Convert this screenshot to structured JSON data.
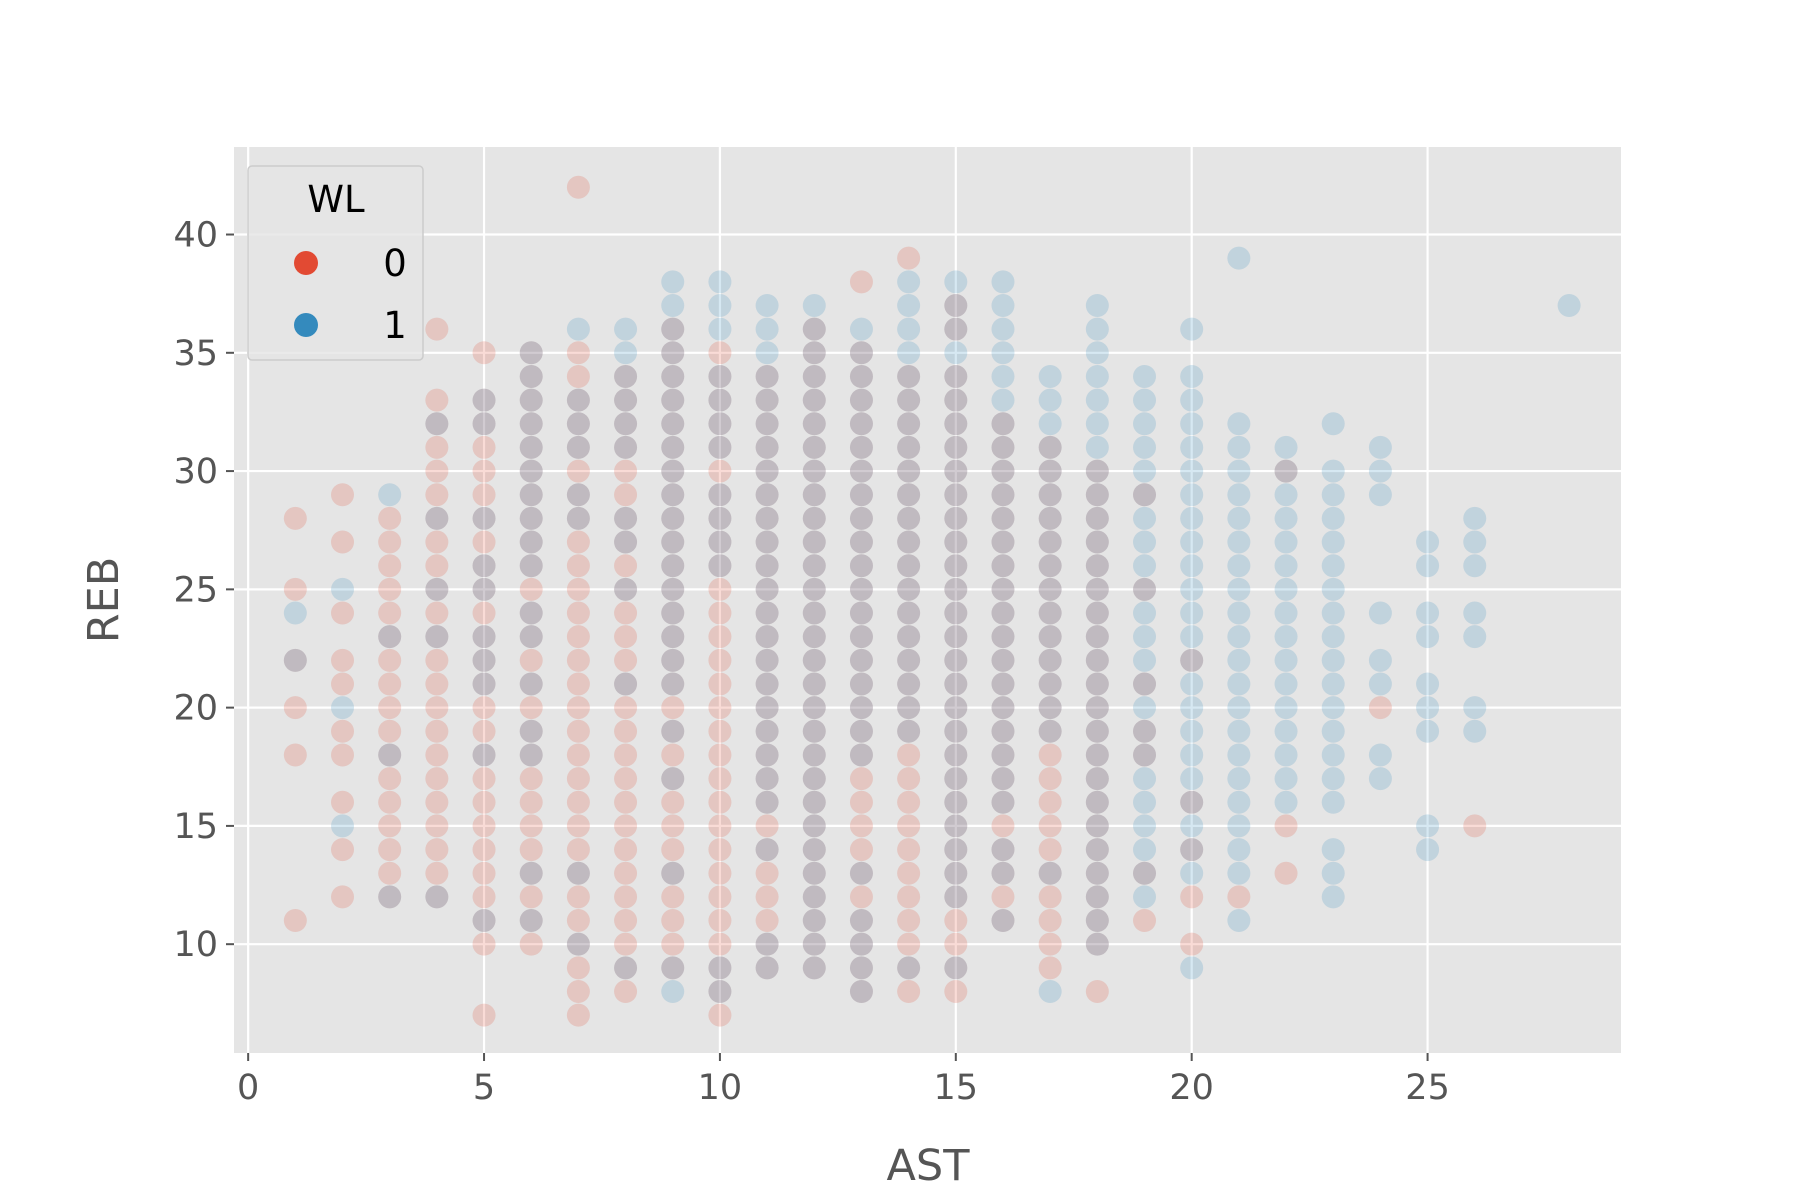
{
  "chart_data": {
    "type": "scatter",
    "title": "",
    "xlabel": "AST",
    "ylabel": "REB",
    "xlim": [
      -0.3,
      29.1
    ],
    "ylim": [
      5.4,
      43.7
    ],
    "xticks": [
      "0",
      "5",
      "10",
      "15",
      "20",
      "25"
    ],
    "yticks": [
      "10",
      "15",
      "20",
      "25",
      "30",
      "35",
      "40"
    ],
    "grid": true,
    "style": "ggplot",
    "legend": {
      "title": "WL",
      "placement": "top-left",
      "entries": [
        {
          "label": "0",
          "color": "#E24A33"
        },
        {
          "label": "1",
          "color": "#348ABD"
        }
      ]
    },
    "point_alpha": 0.2,
    "series": [
      {
        "name": "0",
        "color": "#E24A33",
        "columns": [
          {
            "x": 1,
            "ymin": 11,
            "ymax": 28,
            "extra": [],
            "skip": [
              12,
              13,
              14,
              15,
              16,
              17,
              19,
              21,
              23,
              24,
              26,
              27
            ]
          },
          {
            "x": 2,
            "ymin": 12,
            "ymax": 29,
            "extra": [],
            "skip": [
              13,
              15,
              17,
              20,
              23,
              25,
              26,
              28
            ]
          },
          {
            "x": 3,
            "ymin": 12,
            "ymax": 28,
            "extra": [],
            "skip": []
          },
          {
            "x": 4,
            "ymin": 12,
            "ymax": 33,
            "extra": [
              36
            ],
            "skip": []
          },
          {
            "x": 5,
            "ymin": 10,
            "ymax": 33,
            "extra": [
              7,
              35
            ],
            "skip": []
          },
          {
            "x": 6,
            "ymin": 10,
            "ymax": 35,
            "extra": [],
            "skip": []
          },
          {
            "x": 7,
            "ymin": 8,
            "ymax": 35,
            "extra": [
              7,
              42
            ],
            "skip": []
          },
          {
            "x": 8,
            "ymin": 8,
            "ymax": 34,
            "extra": [],
            "skip": []
          },
          {
            "x": 9,
            "ymin": 9,
            "ymax": 36,
            "extra": [],
            "skip": []
          },
          {
            "x": 10,
            "ymin": 7,
            "ymax": 35,
            "extra": [],
            "skip": []
          },
          {
            "x": 11,
            "ymin": 9,
            "ymax": 34,
            "extra": [],
            "skip": []
          },
          {
            "x": 12,
            "ymin": 9,
            "ymax": 36,
            "extra": [],
            "skip": []
          },
          {
            "x": 13,
            "ymin": 8,
            "ymax": 35,
            "extra": [
              38
            ],
            "skip": []
          },
          {
            "x": 14,
            "ymin": 8,
            "ymax": 34,
            "extra": [
              39
            ],
            "skip": []
          },
          {
            "x": 15,
            "ymin": 8,
            "ymax": 34,
            "extra": [
              36,
              37
            ],
            "skip": []
          },
          {
            "x": 16,
            "ymin": 11,
            "ymax": 32,
            "extra": [],
            "skip": []
          },
          {
            "x": 17,
            "ymin": 9,
            "ymax": 31,
            "extra": [],
            "skip": []
          },
          {
            "x": 18,
            "ymin": 8,
            "ymax": 30,
            "extra": [],
            "skip": [
              9
            ]
          },
          {
            "x": 19,
            "ymin": 11,
            "ymax": 29,
            "extra": [],
            "skip": [
              12,
              14,
              15,
              16,
              17,
              20,
              22,
              23,
              24,
              26,
              27,
              28
            ]
          },
          {
            "x": 20,
            "ymin": 10,
            "ymax": 22,
            "extra": [],
            "skip": [
              11,
              13,
              15,
              17,
              18,
              19,
              20,
              21
            ]
          },
          {
            "x": 21,
            "ymin": 12,
            "ymax": 12,
            "extra": [],
            "skip": []
          },
          {
            "x": 22,
            "ymin": 13,
            "ymax": 13,
            "extra": [
              15,
              30
            ],
            "skip": []
          },
          {
            "x": 24,
            "ymin": 20,
            "ymax": 20,
            "extra": [],
            "skip": []
          },
          {
            "x": 26,
            "ymin": 15,
            "ymax": 15,
            "extra": [],
            "skip": []
          }
        ]
      },
      {
        "name": "1",
        "color": "#348ABD",
        "columns": [
          {
            "x": 1,
            "ymin": 22,
            "ymax": 24,
            "extra": [],
            "skip": [
              23
            ]
          },
          {
            "x": 2,
            "ymin": 15,
            "ymax": 20,
            "extra": [
              25
            ],
            "skip": [
              16,
              17,
              18,
              19
            ]
          },
          {
            "x": 3,
            "ymin": 12,
            "ymax": 29,
            "extra": [],
            "skip": [
              13,
              14,
              15,
              16,
              17,
              19,
              20,
              21,
              22,
              24,
              25,
              26,
              27,
              28
            ]
          },
          {
            "x": 4,
            "ymin": 12,
            "ymax": 32,
            "extra": [],
            "skip": [
              13,
              14,
              15,
              16,
              17,
              18,
              19,
              20,
              21,
              22,
              24,
              26,
              27,
              29,
              30,
              31
            ]
          },
          {
            "x": 5,
            "ymin": 11,
            "ymax": 33,
            "extra": [],
            "skip": [
              12,
              13,
              14,
              15,
              16,
              17,
              19,
              20,
              24,
              27,
              29,
              30,
              31
            ]
          },
          {
            "x": 6,
            "ymin": 11,
            "ymax": 35,
            "extra": [],
            "skip": [
              12,
              14,
              15,
              16,
              17,
              20,
              22,
              25
            ]
          },
          {
            "x": 7,
            "ymin": 10,
            "ymax": 36,
            "extra": [],
            "skip": [
              11,
              12,
              14,
              15,
              16,
              17,
              18,
              19,
              20,
              21,
              22,
              23,
              24,
              25,
              26,
              27,
              30,
              34,
              35
            ]
          },
          {
            "x": 8,
            "ymin": 9,
            "ymax": 36,
            "extra": [],
            "skip": [
              10,
              11,
              12,
              13,
              14,
              15,
              16,
              17,
              18,
              19,
              20,
              22,
              23,
              24,
              26,
              29,
              30
            ]
          },
          {
            "x": 9,
            "ymin": 8,
            "ymax": 38,
            "extra": [],
            "skip": [
              10,
              11,
              12,
              14,
              15,
              16,
              18,
              20
            ]
          },
          {
            "x": 10,
            "ymin": 8,
            "ymax": 38,
            "extra": [],
            "skip": [
              10,
              11,
              12,
              13,
              14,
              15,
              16,
              17,
              18,
              19,
              20,
              21,
              22,
              23,
              24,
              25,
              30,
              35
            ]
          },
          {
            "x": 11,
            "ymin": 9,
            "ymax": 37,
            "extra": [],
            "skip": [
              11,
              12,
              13,
              15
            ]
          },
          {
            "x": 12,
            "ymin": 9,
            "ymax": 37,
            "extra": [],
            "skip": []
          },
          {
            "x": 13,
            "ymin": 8,
            "ymax": 36,
            "extra": [],
            "skip": [
              12,
              14,
              15,
              16,
              17
            ]
          },
          {
            "x": 14,
            "ymin": 9,
            "ymax": 38,
            "extra": [],
            "skip": [
              10,
              11,
              12,
              13,
              14,
              15,
              16,
              17,
              18
            ]
          },
          {
            "x": 15,
            "ymin": 9,
            "ymax": 38,
            "extra": [],
            "skip": [
              10,
              11
            ]
          },
          {
            "x": 16,
            "ymin": 11,
            "ymax": 38,
            "extra": [],
            "skip": [
              12,
              15
            ]
          },
          {
            "x": 17,
            "ymin": 8,
            "ymax": 34,
            "extra": [],
            "skip": [
              9,
              10,
              11,
              12,
              14,
              15,
              16,
              17,
              18
            ]
          },
          {
            "x": 18,
            "ymin": 10,
            "ymax": 37,
            "extra": [],
            "skip": []
          },
          {
            "x": 19,
            "ymin": 12,
            "ymax": 34,
            "extra": [],
            "skip": []
          },
          {
            "x": 20,
            "ymin": 9,
            "ymax": 36,
            "extra": [],
            "skip": [
              10,
              11,
              12,
              35
            ]
          },
          {
            "x": 21,
            "ymin": 11,
            "ymax": 32,
            "extra": [
              39
            ],
            "skip": [
              12
            ]
          },
          {
            "x": 22,
            "ymin": 16,
            "ymax": 31,
            "extra": [],
            "skip": []
          },
          {
            "x": 23,
            "ymin": 12,
            "ymax": 32,
            "extra": [],
            "skip": [
              15,
              31
            ]
          },
          {
            "x": 24,
            "ymin": 17,
            "ymax": 31,
            "extra": [],
            "skip": [
              19,
              20,
              23,
              25,
              26,
              27,
              28
            ]
          },
          {
            "x": 25,
            "ymin": 14,
            "ymax": 27,
            "extra": [],
            "skip": [
              16,
              17,
              18,
              22,
              25
            ]
          },
          {
            "x": 26,
            "ymin": 19,
            "ymax": 28,
            "extra": [],
            "skip": [
              21,
              22,
              25
            ]
          },
          {
            "x": 28,
            "ymin": 37,
            "ymax": 37,
            "extra": [],
            "skip": []
          }
        ]
      }
    ]
  }
}
